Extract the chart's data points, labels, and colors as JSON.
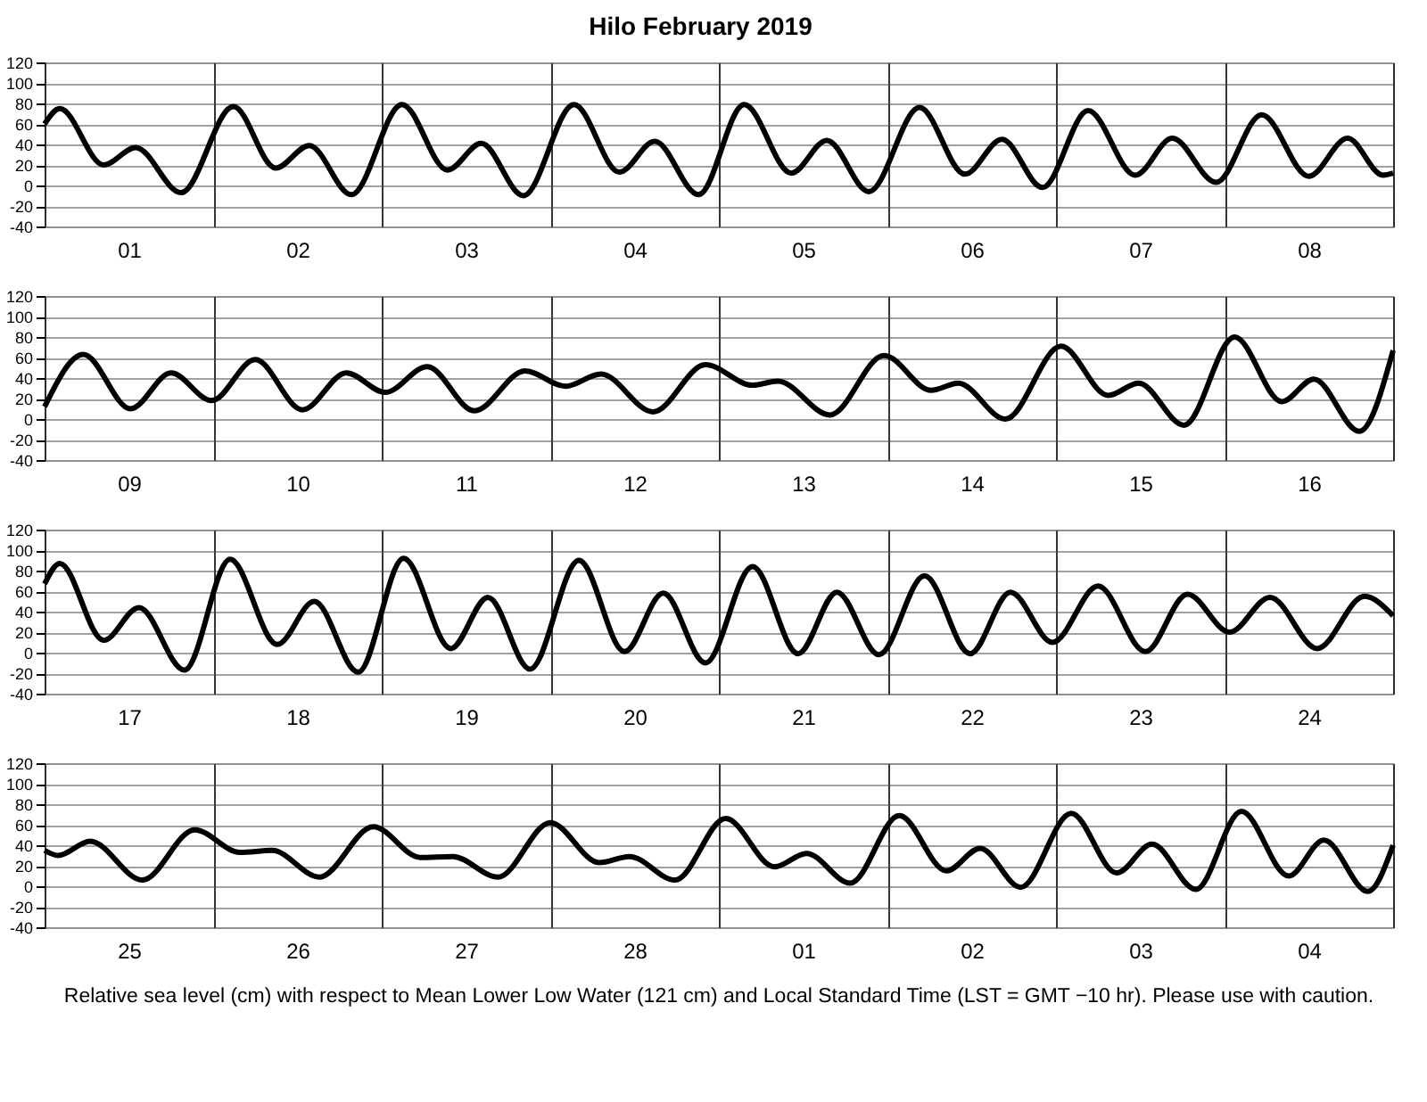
{
  "chart_data": [
    {
      "type": "line",
      "title": "Hilo          February   2019",
      "xlim": [
        "2019-02-01T00:00",
        "2019-02-09T00:00"
      ],
      "ylim": [
        -40,
        120
      ],
      "yticks": [
        -40,
        -20,
        0,
        20,
        40,
        60,
        80,
        100,
        120
      ],
      "grid": true,
      "marker": "none",
      "line_style": "solid",
      "xticks": [
        {
          "value": "2019-02-01T00:00",
          "label": null
        },
        {
          "value": "2019-02-01T12:00",
          "label": "01"
        },
        {
          "value": "2019-02-02T00:00",
          "label": null
        },
        {
          "value": "2019-02-02T12:00",
          "label": "02"
        },
        {
          "value": "2019-02-03T00:00",
          "label": null
        },
        {
          "value": "2019-02-03T12:00",
          "label": "03"
        },
        {
          "value": "2019-02-04T00:00",
          "label": null
        },
        {
          "value": "2019-02-04T12:00",
          "label": "04"
        },
        {
          "value": "2019-02-05T00:00",
          "label": null
        },
        {
          "value": "2019-02-05T12:00",
          "label": "05"
        },
        {
          "value": "2019-02-06T00:00",
          "label": null
        },
        {
          "value": "2019-02-06T12:00",
          "label": "06"
        },
        {
          "value": "2019-02-07T00:00",
          "label": null
        },
        {
          "value": "2019-02-07T12:00",
          "label": "07"
        },
        {
          "value": "2019-02-08T00:00",
          "label": null
        },
        {
          "value": "2019-02-08T12:00",
          "label": "08"
        },
        {
          "value": "2019-02-09T00:00",
          "label": null
        }
      ],
      "series": [
        {
          "color": "#000000",
          "x": [
            "2019-02-01T00:00",
            "2019-02-01T02:10",
            "2019-02-01T08:24",
            "2019-02-01T12:58",
            "2019-02-01T19:26",
            "2019-02-02T02:53",
            "2019-02-02T08:53",
            "2019-02-02T13:41",
            "2019-02-02T19:41",
            "2019-02-03T02:53",
            "2019-02-03T09:22",
            "2019-02-03T14:10",
            "2019-02-03T20:10",
            "2019-02-04T03:22",
            "2019-02-04T09:50",
            "2019-02-04T14:53",
            "2019-02-04T21:07",
            "2019-02-05T03:36",
            "2019-02-05T10:19",
            "2019-02-05T15:22",
            "2019-02-05T21:22",
            "2019-02-06T04:34",
            "2019-02-06T11:02",
            "2019-02-06T16:19",
            "2019-02-06T22:05",
            "2019-02-07T04:34",
            "2019-02-07T11:17",
            "2019-02-07T16:34",
            "2019-02-07T22:48",
            "2019-02-08T05:17",
            "2019-02-08T12:00",
            "2019-02-08T17:31",
            "2019-02-08T22:34",
            "2019-02-09T00:00"
          ],
          "values": [
            60,
            75,
            20,
            37,
            -7,
            77,
            17,
            39,
            -9,
            79,
            15,
            41,
            -10,
            79,
            13,
            43,
            -9,
            79,
            12,
            44,
            -6,
            76,
            11,
            45,
            -2,
            73,
            10,
            46,
            3,
            69,
            9,
            46,
            10,
            12
          ]
        }
      ]
    },
    {
      "type": "line",
      "xlim": [
        "2019-02-09T00:00",
        "2019-02-17T00:00"
      ],
      "ylim": [
        -40,
        120
      ],
      "yticks": [
        -40,
        -20,
        0,
        20,
        40,
        60,
        80,
        100,
        120
      ],
      "grid": true,
      "marker": "none",
      "line_style": "solid",
      "xticks": [
        {
          "value": "2019-02-09T00:00",
          "label": null
        },
        {
          "value": "2019-02-09T12:00",
          "label": "09"
        },
        {
          "value": "2019-02-10T00:00",
          "label": null
        },
        {
          "value": "2019-02-10T12:00",
          "label": "10"
        },
        {
          "value": "2019-02-11T00:00",
          "label": null
        },
        {
          "value": "2019-02-11T12:00",
          "label": "11"
        },
        {
          "value": "2019-02-12T00:00",
          "label": null
        },
        {
          "value": "2019-02-12T12:00",
          "label": "12"
        },
        {
          "value": "2019-02-13T00:00",
          "label": null
        },
        {
          "value": "2019-02-13T12:00",
          "label": "13"
        },
        {
          "value": "2019-02-14T00:00",
          "label": null
        },
        {
          "value": "2019-02-14T12:00",
          "label": "14"
        },
        {
          "value": "2019-02-15T00:00",
          "label": null
        },
        {
          "value": "2019-02-15T12:00",
          "label": "15"
        },
        {
          "value": "2019-02-16T00:00",
          "label": null
        },
        {
          "value": "2019-02-16T12:00",
          "label": "16"
        },
        {
          "value": "2019-02-17T00:00",
          "label": null
        }
      ],
      "series": [
        {
          "color": "#000000",
          "x": [
            "2019-02-09T00:00",
            "2019-02-09T05:31",
            "2019-02-09T12:14",
            "2019-02-09T18:00",
            "2019-02-09T23:46",
            "2019-02-10T06:00",
            "2019-02-10T12:43",
            "2019-02-10T18:58",
            "2019-02-11T00:29",
            "2019-02-11T06:29",
            "2019-02-11T13:12",
            "2019-02-11T20:24",
            "2019-02-12T02:10",
            "2019-02-12T07:12",
            "2019-02-12T14:38",
            "2019-02-12T22:05",
            "2019-02-13T04:48",
            "2019-02-13T08:24",
            "2019-02-13T15:50",
            "2019-02-13T23:31",
            "2019-02-14T06:14",
            "2019-02-14T10:05",
            "2019-02-14T16:48",
            "2019-02-15T00:43",
            "2019-02-15T07:26",
            "2019-02-15T11:46",
            "2019-02-15T18:14",
            "2019-02-16T01:26",
            "2019-02-16T08:10",
            "2019-02-16T12:43",
            "2019-02-16T19:12",
            "2019-02-17T00:00"
          ],
          "values": [
            12,
            63,
            10,
            45,
            18,
            58,
            9,
            45,
            26,
            51,
            8,
            47,
            32,
            44,
            7,
            53,
            33,
            37,
            4,
            62,
            28,
            35,
            0,
            71,
            23,
            35,
            -6,
            80,
            17,
            39,
            -12,
            67
          ]
        }
      ]
    },
    {
      "type": "line",
      "xlim": [
        "2019-02-17T00:00",
        "2019-02-25T00:00"
      ],
      "ylim": [
        -40,
        120
      ],
      "yticks": [
        -40,
        -20,
        0,
        20,
        40,
        60,
        80,
        100,
        120
      ],
      "grid": true,
      "marker": "none",
      "line_style": "solid",
      "xticks": [
        {
          "value": "2019-02-17T00:00",
          "label": null
        },
        {
          "value": "2019-02-17T12:00",
          "label": "17"
        },
        {
          "value": "2019-02-18T00:00",
          "label": null
        },
        {
          "value": "2019-02-18T12:00",
          "label": "18"
        },
        {
          "value": "2019-02-19T00:00",
          "label": null
        },
        {
          "value": "2019-02-19T12:00",
          "label": "19"
        },
        {
          "value": "2019-02-20T00:00",
          "label": null
        },
        {
          "value": "2019-02-20T12:00",
          "label": "20"
        },
        {
          "value": "2019-02-21T00:00",
          "label": null
        },
        {
          "value": "2019-02-21T12:00",
          "label": "21"
        },
        {
          "value": "2019-02-22T00:00",
          "label": null
        },
        {
          "value": "2019-02-22T12:00",
          "label": "22"
        },
        {
          "value": "2019-02-23T00:00",
          "label": null
        },
        {
          "value": "2019-02-23T12:00",
          "label": "23"
        },
        {
          "value": "2019-02-24T00:00",
          "label": null
        },
        {
          "value": "2019-02-24T12:00",
          "label": "24"
        },
        {
          "value": "2019-02-25T00:00",
          "label": null
        }
      ],
      "series": [
        {
          "color": "#000000",
          "x": [
            "2019-02-17T00:00",
            "2019-02-17T02:10",
            "2019-02-17T08:24",
            "2019-02-17T13:26",
            "2019-02-17T19:55",
            "2019-02-18T02:24",
            "2019-02-18T09:07",
            "2019-02-18T14:24",
            "2019-02-18T20:38",
            "2019-02-19T03:07",
            "2019-02-19T09:50",
            "2019-02-19T15:07",
            "2019-02-19T21:07",
            "2019-02-20T04:05",
            "2019-02-20T10:34",
            "2019-02-20T16:05",
            "2019-02-20T22:05",
            "2019-02-21T04:48",
            "2019-02-21T11:17",
            "2019-02-21T16:48",
            "2019-02-21T22:48",
            "2019-02-22T05:17",
            "2019-02-22T11:46",
            "2019-02-22T17:31",
            "2019-02-22T23:31",
            "2019-02-23T06:00",
            "2019-02-23T12:43",
            "2019-02-23T18:43",
            "2019-02-24T00:43",
            "2019-02-24T06:29",
            "2019-02-24T13:12",
            "2019-02-24T19:55",
            "2019-02-25T00:00"
          ],
          "values": [
            67,
            87,
            12,
            44,
            -17,
            91,
            8,
            50,
            -19,
            92,
            4,
            54,
            -16,
            90,
            1,
            58,
            -10,
            84,
            -1,
            59,
            -2,
            75,
            -1,
            59,
            10,
            65,
            1,
            57,
            20,
            54,
            4,
            55,
            36
          ]
        }
      ]
    },
    {
      "type": "line",
      "xlim": [
        "2019-02-25T00:00",
        "2019-03-05T00:00"
      ],
      "ylim": [
        -40,
        120
      ],
      "yticks": [
        -40,
        -20,
        0,
        20,
        40,
        60,
        80,
        100,
        120
      ],
      "grid": true,
      "marker": "none",
      "line_style": "solid",
      "annotations": [
        "Relative sea level (cm) with respect to Mean Lower Low Water (121 cm) and Local Standard Time (LST = GMT −10 hr). Please use with caution."
      ],
      "xticks": [
        {
          "value": "2019-02-25T00:00",
          "label": null
        },
        {
          "value": "2019-02-25T12:00",
          "label": "25"
        },
        {
          "value": "2019-02-26T00:00",
          "label": null
        },
        {
          "value": "2019-02-26T12:00",
          "label": "26"
        },
        {
          "value": "2019-02-27T00:00",
          "label": null
        },
        {
          "value": "2019-02-27T12:00",
          "label": "27"
        },
        {
          "value": "2019-02-28T00:00",
          "label": null
        },
        {
          "value": "2019-02-28T12:00",
          "label": "28"
        },
        {
          "value": "2019-03-01T00:00",
          "label": null
        },
        {
          "value": "2019-03-01T12:00",
          "label": "01"
        },
        {
          "value": "2019-03-02T00:00",
          "label": null
        },
        {
          "value": "2019-03-02T12:00",
          "label": "02"
        },
        {
          "value": "2019-03-03T00:00",
          "label": null
        },
        {
          "value": "2019-03-03T12:00",
          "label": "03"
        },
        {
          "value": "2019-03-04T00:00",
          "label": null
        },
        {
          "value": "2019-03-04T12:00",
          "label": "04"
        },
        {
          "value": "2019-03-05T00:00",
          "label": null
        }
      ],
      "series": [
        {
          "color": "#000000",
          "x": [
            "2019-02-25T00:00",
            "2019-02-25T01:55",
            "2019-02-25T06:29",
            "2019-02-25T13:55",
            "2019-02-25T21:22",
            "2019-02-26T03:50",
            "2019-02-26T08:24",
            "2019-02-26T15:07",
            "2019-02-26T22:48",
            "2019-02-27T05:31",
            "2019-02-27T10:05",
            "2019-02-27T16:34",
            "2019-02-28T00:00",
            "2019-02-28T06:58",
            "2019-02-28T11:17",
            "2019-02-28T17:46",
            "2019-03-01T00:58",
            "2019-03-01T07:55",
            "2019-03-01T12:29",
            "2019-03-01T18:43",
            "2019-03-02T01:41",
            "2019-03-02T08:24",
            "2019-03-02T13:12",
            "2019-03-02T18:58",
            "2019-03-03T02:10",
            "2019-03-03T08:38",
            "2019-03-03T13:41",
            "2019-03-03T19:55",
            "2019-03-04T02:24",
            "2019-03-04T09:07",
            "2019-03-04T14:10",
            "2019-03-04T20:24",
            "2019-03-05T00:00"
          ],
          "values": [
            35,
            30,
            44,
            6,
            55,
            33,
            35,
            9,
            58,
            28,
            29,
            9,
            62,
            23,
            29,
            6,
            66,
            19,
            32,
            3,
            69,
            15,
            37,
            -1,
            71,
            13,
            41,
            -3,
            73,
            10,
            45,
            -5,
            40
          ]
        }
      ]
    }
  ]
}
